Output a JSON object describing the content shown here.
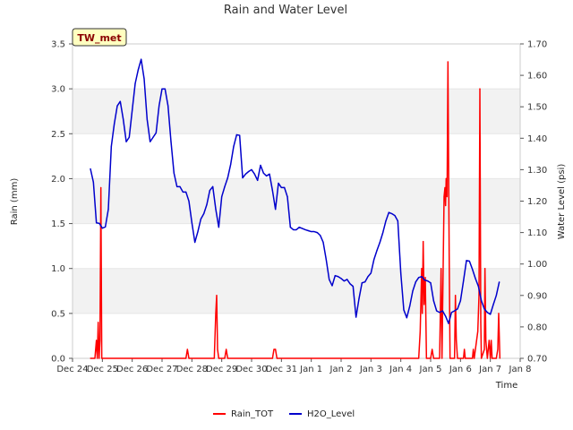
{
  "chart_data": {
    "type": "line",
    "title": "Rain and Water Level",
    "station_label": "TW_met",
    "xlabel": "Time",
    "ylabel_left": "Rain (mm)",
    "ylabel_right": "Water Level (psi)",
    "x_range_days": [
      0,
      15
    ],
    "x_ticks": [
      {
        "day": 0,
        "label": "Dec 24"
      },
      {
        "day": 1,
        "label": "Dec 25"
      },
      {
        "day": 2,
        "label": "Dec 26"
      },
      {
        "day": 3,
        "label": "Dec 27"
      },
      {
        "day": 4,
        "label": "Dec 28"
      },
      {
        "day": 5,
        "label": "Dec 29"
      },
      {
        "day": 6,
        "label": "Dec 30"
      },
      {
        "day": 7,
        "label": "Dec 31"
      },
      {
        "day": 8,
        "label": "Jan 1"
      },
      {
        "day": 9,
        "label": "Jan 2"
      },
      {
        "day": 10,
        "label": "Jan 3"
      },
      {
        "day": 11,
        "label": "Jan 4"
      },
      {
        "day": 12,
        "label": "Jan 5"
      },
      {
        "day": 13,
        "label": "Jan 6"
      },
      {
        "day": 14,
        "label": "Jan 7"
      },
      {
        "day": 15,
        "label": "Jan 8"
      }
    ],
    "y_left": {
      "min": 0,
      "max": 3.5,
      "ticks": [
        "0.0",
        "0.5",
        "1.0",
        "1.5",
        "2.0",
        "2.5",
        "3.0",
        "3.5"
      ]
    },
    "y_right": {
      "min": 0.7,
      "max": 1.7,
      "ticks": [
        "0.70",
        "0.80",
        "0.90",
        "1.00",
        "1.10",
        "1.20",
        "1.30",
        "1.40",
        "1.50",
        "1.60",
        "1.70"
      ]
    },
    "legend": [
      "Rain_TOT",
      "H2O_Level"
    ],
    "series": [
      {
        "name": "Rain_TOT",
        "color": "#ff0000",
        "axis": "left",
        "points": [
          [
            0.6,
            0
          ],
          [
            0.75,
            0
          ],
          [
            0.8,
            0.2
          ],
          [
            0.83,
            0
          ],
          [
            0.86,
            0.4
          ],
          [
            0.89,
            0
          ],
          [
            0.92,
            0.2
          ],
          [
            0.95,
            1.9
          ],
          [
            0.98,
            0
          ],
          [
            1.0,
            0
          ],
          [
            3.8,
            0
          ],
          [
            3.85,
            0.1
          ],
          [
            3.9,
            0
          ],
          [
            4.75,
            0
          ],
          [
            4.8,
            0.5
          ],
          [
            4.83,
            0.7
          ],
          [
            4.86,
            0.1
          ],
          [
            4.9,
            0
          ],
          [
            5.1,
            0
          ],
          [
            5.15,
            0.1
          ],
          [
            5.2,
            0
          ],
          [
            6.7,
            0
          ],
          [
            6.75,
            0.1
          ],
          [
            6.8,
            0.1
          ],
          [
            6.85,
            0
          ],
          [
            11.6,
            0
          ],
          [
            11.65,
            0.3
          ],
          [
            11.7,
            1.0
          ],
          [
            11.72,
            0.5
          ],
          [
            11.75,
            1.3
          ],
          [
            11.78,
            0.6
          ],
          [
            11.82,
            0.9
          ],
          [
            11.86,
            0
          ],
          [
            12.0,
            0
          ],
          [
            12.05,
            0.1
          ],
          [
            12.1,
            0
          ],
          [
            12.3,
            0
          ],
          [
            12.35,
            1.0
          ],
          [
            12.38,
            0
          ],
          [
            12.45,
            1.8
          ],
          [
            12.48,
            1.9
          ],
          [
            12.5,
            1.7
          ],
          [
            12.52,
            2.0
          ],
          [
            12.55,
            1.8
          ],
          [
            12.58,
            3.3
          ],
          [
            12.62,
            1.2
          ],
          [
            12.65,
            0
          ],
          [
            12.8,
            0
          ],
          [
            12.83,
            0.7
          ],
          [
            12.86,
            0.2
          ],
          [
            12.9,
            0
          ],
          [
            13.1,
            0
          ],
          [
            13.13,
            0.1
          ],
          [
            13.16,
            0
          ],
          [
            13.4,
            0
          ],
          [
            13.43,
            0.1
          ],
          [
            13.46,
            0
          ],
          [
            13.58,
            0.3
          ],
          [
            13.62,
            0.7
          ],
          [
            13.65,
            3.0
          ],
          [
            13.68,
            0.4
          ],
          [
            13.7,
            0
          ],
          [
            13.8,
            0.1
          ],
          [
            13.82,
            1.0
          ],
          [
            13.85,
            0.2
          ],
          [
            13.9,
            0
          ],
          [
            13.93,
            0.1
          ],
          [
            13.96,
            0.2
          ],
          [
            14.0,
            0
          ],
          [
            14.03,
            0.2
          ],
          [
            14.06,
            0
          ],
          [
            14.2,
            0
          ],
          [
            14.25,
            0.1
          ],
          [
            14.28,
            0.5
          ],
          [
            14.32,
            0
          ]
        ]
      },
      {
        "name": "H2O_Level",
        "color": "#0000cc",
        "axis": "right",
        "points": [
          [
            0.6,
            1.303
          ],
          [
            0.7,
            1.26
          ],
          [
            0.8,
            1.131
          ],
          [
            0.9,
            1.129
          ],
          [
            1.0,
            1.114
          ],
          [
            1.1,
            1.118
          ],
          [
            1.2,
            1.174
          ],
          [
            1.3,
            1.374
          ],
          [
            1.4,
            1.446
          ],
          [
            1.5,
            1.503
          ],
          [
            1.6,
            1.517
          ],
          [
            1.7,
            1.46
          ],
          [
            1.8,
            1.389
          ],
          [
            1.9,
            1.403
          ],
          [
            2.0,
            1.489
          ],
          [
            2.1,
            1.574
          ],
          [
            2.2,
            1.617
          ],
          [
            2.3,
            1.651
          ],
          [
            2.4,
            1.589
          ],
          [
            2.5,
            1.46
          ],
          [
            2.6,
            1.389
          ],
          [
            2.7,
            1.403
          ],
          [
            2.8,
            1.417
          ],
          [
            2.9,
            1.503
          ],
          [
            3.0,
            1.557
          ],
          [
            3.1,
            1.557
          ],
          [
            3.2,
            1.503
          ],
          [
            3.3,
            1.389
          ],
          [
            3.4,
            1.289
          ],
          [
            3.5,
            1.246
          ],
          [
            3.6,
            1.246
          ],
          [
            3.7,
            1.229
          ],
          [
            3.8,
            1.229
          ],
          [
            3.9,
            1.2
          ],
          [
            4.0,
            1.131
          ],
          [
            4.1,
            1.069
          ],
          [
            4.2,
            1.103
          ],
          [
            4.3,
            1.143
          ],
          [
            4.4,
            1.16
          ],
          [
            4.5,
            1.189
          ],
          [
            4.6,
            1.234
          ],
          [
            4.7,
            1.246
          ],
          [
            4.8,
            1.174
          ],
          [
            4.9,
            1.117
          ],
          [
            5.0,
            1.214
          ],
          [
            5.1,
            1.246
          ],
          [
            5.2,
            1.274
          ],
          [
            5.3,
            1.317
          ],
          [
            5.4,
            1.374
          ],
          [
            5.5,
            1.411
          ],
          [
            5.6,
            1.409
          ],
          [
            5.7,
            1.274
          ],
          [
            5.8,
            1.286
          ],
          [
            5.9,
            1.294
          ],
          [
            6.0,
            1.3
          ],
          [
            6.1,
            1.286
          ],
          [
            6.2,
            1.266
          ],
          [
            6.3,
            1.314
          ],
          [
            6.4,
            1.289
          ],
          [
            6.5,
            1.28
          ],
          [
            6.6,
            1.286
          ],
          [
            6.7,
            1.234
          ],
          [
            6.8,
            1.174
          ],
          [
            6.9,
            1.257
          ],
          [
            7.0,
            1.243
          ],
          [
            7.1,
            1.243
          ],
          [
            7.2,
            1.214
          ],
          [
            7.3,
            1.117
          ],
          [
            7.4,
            1.109
          ],
          [
            7.5,
            1.109
          ],
          [
            7.6,
            1.117
          ],
          [
            7.7,
            1.113
          ],
          [
            7.8,
            1.109
          ],
          [
            7.9,
            1.106
          ],
          [
            8.0,
            1.103
          ],
          [
            8.1,
            1.103
          ],
          [
            8.2,
            1.1
          ],
          [
            8.3,
            1.091
          ],
          [
            8.4,
            1.069
          ],
          [
            8.5,
            1.014
          ],
          [
            8.6,
            0.951
          ],
          [
            8.7,
            0.931
          ],
          [
            8.8,
            0.963
          ],
          [
            8.9,
            0.96
          ],
          [
            9.0,
            0.954
          ],
          [
            9.1,
            0.946
          ],
          [
            9.2,
            0.951
          ],
          [
            9.3,
            0.937
          ],
          [
            9.4,
            0.929
          ],
          [
            9.5,
            0.831
          ],
          [
            9.6,
            0.89
          ],
          [
            9.7,
            0.94
          ],
          [
            9.8,
            0.943
          ],
          [
            9.9,
            0.96
          ],
          [
            10.0,
            0.971
          ],
          [
            10.1,
            1.014
          ],
          [
            10.2,
            1.043
          ],
          [
            10.3,
            1.069
          ],
          [
            10.4,
            1.1
          ],
          [
            10.5,
            1.137
          ],
          [
            10.6,
            1.164
          ],
          [
            10.7,
            1.16
          ],
          [
            10.8,
            1.154
          ],
          [
            10.9,
            1.137
          ],
          [
            11.0,
            0.971
          ],
          [
            11.1,
            0.854
          ],
          [
            11.2,
            0.829
          ],
          [
            11.3,
            0.866
          ],
          [
            11.4,
            0.914
          ],
          [
            11.5,
            0.943
          ],
          [
            11.6,
            0.957
          ],
          [
            11.7,
            0.96
          ],
          [
            11.8,
            0.949
          ],
          [
            11.9,
            0.946
          ],
          [
            12.0,
            0.94
          ],
          [
            12.1,
            0.883
          ],
          [
            12.2,
            0.851
          ],
          [
            12.3,
            0.846
          ],
          [
            12.4,
            0.851
          ],
          [
            12.5,
            0.834
          ],
          [
            12.6,
            0.811
          ],
          [
            12.7,
            0.846
          ],
          [
            12.8,
            0.851
          ],
          [
            12.9,
            0.857
          ],
          [
            13.0,
            0.883
          ],
          [
            13.1,
            0.946
          ],
          [
            13.2,
            1.011
          ],
          [
            13.3,
            1.009
          ],
          [
            13.4,
            0.983
          ],
          [
            13.5,
            0.954
          ],
          [
            13.6,
            0.929
          ],
          [
            13.7,
            0.883
          ],
          [
            13.8,
            0.857
          ],
          [
            13.9,
            0.846
          ],
          [
            14.0,
            0.84
          ],
          [
            14.1,
            0.871
          ],
          [
            14.2,
            0.9
          ],
          [
            14.3,
            0.943
          ]
        ]
      }
    ]
  }
}
